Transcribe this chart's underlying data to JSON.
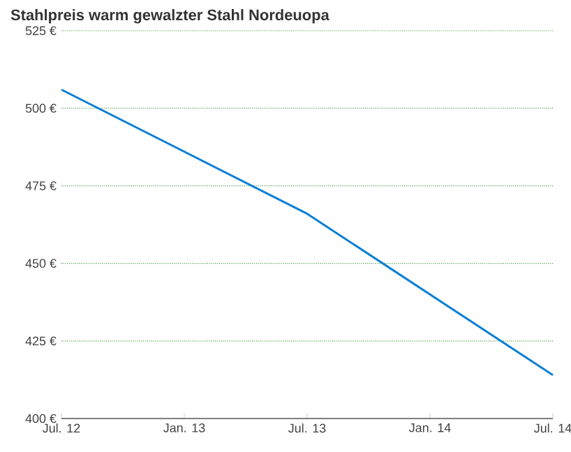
{
  "chart_data": {
    "type": "line",
    "title": "Stahlpreis warm gewalzter Stahl Nordeuopa",
    "x": [
      "2012-07",
      "2013-07",
      "2014-07"
    ],
    "series": [
      {
        "color": "#0a7fd4",
        "values": [
          506,
          466,
          414
        ]
      }
    ],
    "xlim": [
      "2012-07",
      "2014-07"
    ],
    "xticks": [
      {
        "value": "2012-07",
        "label": "Jul. 12"
      },
      {
        "value": "2013-01",
        "label": "Jan. 13"
      },
      {
        "value": "2013-07",
        "label": "Jul. 13"
      },
      {
        "value": "2014-01",
        "label": "Jan. 14"
      },
      {
        "value": "2014-07",
        "label": "Jul. 14"
      }
    ],
    "ylim": [
      400,
      525
    ],
    "yticks": [
      {
        "value": 400,
        "label": "400 €"
      },
      {
        "value": 425,
        "label": "425 €"
      },
      {
        "value": 450,
        "label": "450 €"
      },
      {
        "value": 475,
        "label": "475 €"
      },
      {
        "value": 500,
        "label": "500 €"
      },
      {
        "value": 525,
        "label": "525 €"
      }
    ],
    "grid": "y",
    "marker": "none",
    "line_style": "solid"
  }
}
